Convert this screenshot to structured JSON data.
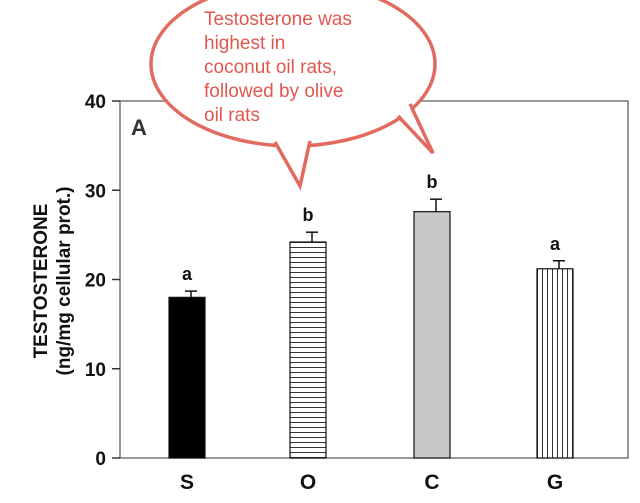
{
  "chart_data": {
    "type": "bar",
    "panel_label": "A",
    "title": "",
    "xlabel": "",
    "ylabel_lines": [
      "TESTOSTERONE",
      "(ng/mg cellular prot.)"
    ],
    "ylim": [
      0,
      40
    ],
    "yticks": [
      0,
      10,
      20,
      30,
      40
    ],
    "categories": [
      "S",
      "O",
      "C",
      "G"
    ],
    "values": [
      18.0,
      24.2,
      27.6,
      21.2
    ],
    "errors": [
      0.7,
      1.1,
      1.4,
      0.9
    ],
    "significance": [
      "a",
      "b",
      "b",
      "a"
    ],
    "bar_fills": [
      "solid-black",
      "horizontal-stripes",
      "solid-gray",
      "vertical-stripes"
    ],
    "grid": false,
    "callout": {
      "lines": [
        "Testosterone was",
        "highest in",
        "coconut oil rats,",
        "followed by olive",
        "oil rats"
      ],
      "color": "#e0574f"
    }
  }
}
